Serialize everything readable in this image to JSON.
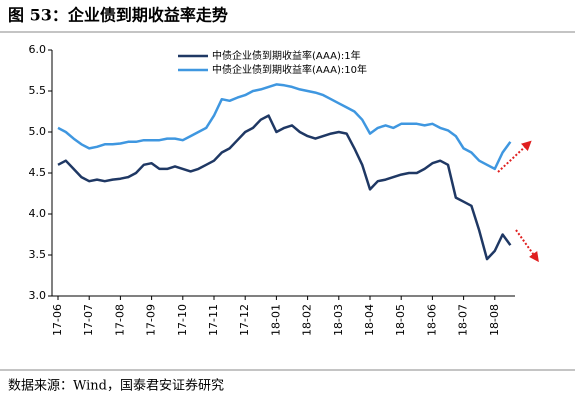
{
  "chart_data": {
    "type": "line",
    "title": "图 53：企业债到期收益率走势",
    "source": "数据来源：Wind，国泰君安证券研究",
    "categories": [
      "17-06",
      null,
      null,
      null,
      "17-07",
      null,
      null,
      null,
      "17-08",
      null,
      null,
      null,
      "17-09",
      null,
      null,
      null,
      "17-10",
      null,
      null,
      null,
      "17-11",
      null,
      null,
      null,
      "17-12",
      null,
      null,
      null,
      "18-01",
      null,
      null,
      null,
      "18-02",
      null,
      null,
      null,
      "18-03",
      null,
      null,
      null,
      "18-04",
      null,
      null,
      null,
      "18-05",
      null,
      null,
      null,
      "18-06",
      null,
      null,
      null,
      "18-07",
      null,
      null,
      null,
      "18-08",
      null,
      null
    ],
    "series": [
      {
        "name": "中债企业债到期收益率(AAA):1年",
        "color": "#1f3864",
        "values": [
          4.6,
          4.65,
          4.55,
          4.45,
          4.4,
          4.42,
          4.4,
          4.42,
          4.43,
          4.45,
          4.5,
          4.6,
          4.62,
          4.55,
          4.55,
          4.58,
          4.55,
          4.52,
          4.55,
          4.6,
          4.65,
          4.75,
          4.8,
          4.9,
          5.0,
          5.05,
          5.15,
          5.2,
          5.0,
          5.05,
          5.08,
          5.0,
          4.95,
          4.92,
          4.95,
          4.98,
          5.0,
          4.98,
          4.8,
          4.6,
          4.3,
          4.4,
          4.42,
          4.45,
          4.48,
          4.5,
          4.5,
          4.55,
          4.62,
          4.65,
          4.6,
          4.2,
          4.15,
          4.1,
          3.8,
          3.45,
          3.55,
          3.75,
          3.62
        ]
      },
      {
        "name": "中债企业债到期收益率(AAA):10年",
        "color": "#3f97e0",
        "values": [
          5.05,
          5.0,
          4.92,
          4.85,
          4.8,
          4.82,
          4.85,
          4.85,
          4.86,
          4.88,
          4.88,
          4.9,
          4.9,
          4.9,
          4.92,
          4.92,
          4.9,
          4.95,
          5.0,
          5.05,
          5.2,
          5.4,
          5.38,
          5.42,
          5.45,
          5.5,
          5.52,
          5.55,
          5.58,
          5.57,
          5.55,
          5.52,
          5.5,
          5.48,
          5.45,
          5.4,
          5.35,
          5.3,
          5.25,
          5.15,
          4.98,
          5.05,
          5.08,
          5.05,
          5.1,
          5.1,
          5.1,
          5.08,
          5.1,
          5.05,
          5.02,
          4.95,
          4.8,
          4.75,
          4.65,
          4.6,
          4.55,
          4.75,
          4.88
        ]
      }
    ],
    "ylim": [
      3.0,
      6.0
    ],
    "yticks": [
      {
        "value": 3,
        "label": "3.0"
      },
      3.5,
      {
        "value": 4,
        "label": "4.0"
      },
      4.5,
      {
        "value": 5,
        "label": "5.0"
      },
      5.5,
      {
        "value": 6,
        "label": "6.0"
      }
    ],
    "grid": false
  }
}
